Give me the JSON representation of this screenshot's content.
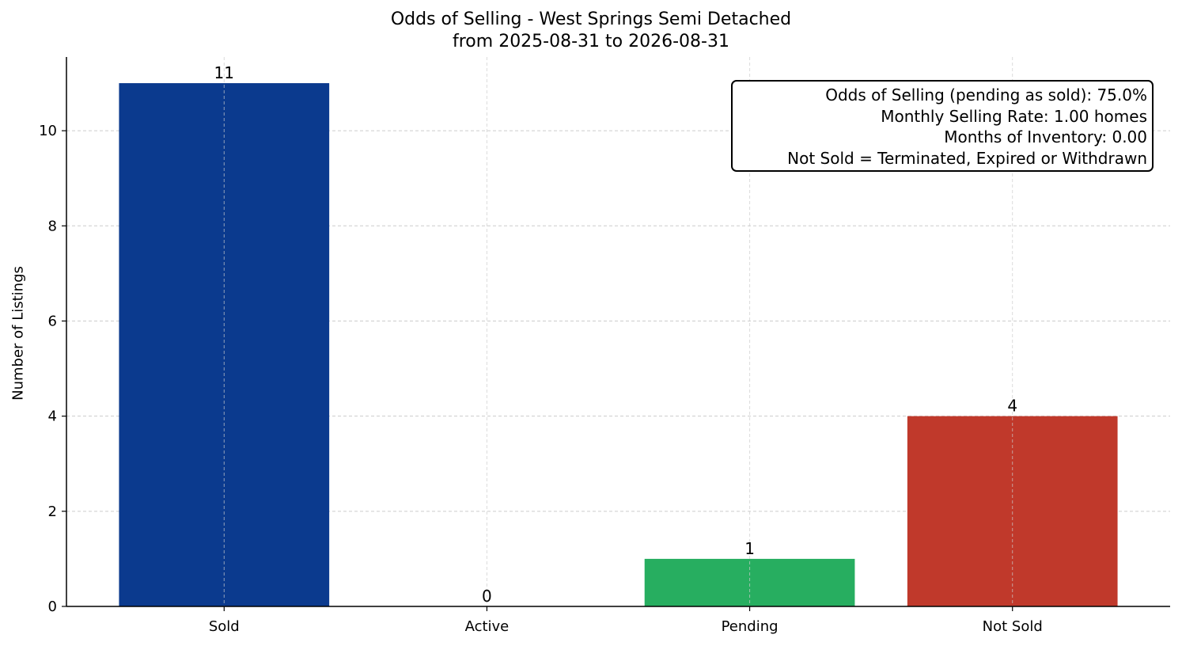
{
  "chart_data": {
    "type": "bar",
    "title": "Odds of Selling - West Springs Semi Detached",
    "subtitle": "from 2025-08-31 to 2026-08-31",
    "xlabel": "",
    "ylabel": "Number of Listings",
    "categories": [
      "Sold",
      "Active",
      "Pending",
      "Not Sold"
    ],
    "values": [
      11,
      0,
      1,
      4
    ],
    "data_labels": [
      "11",
      "0",
      "1",
      "4"
    ],
    "colors": [
      "#0b3a8e",
      "#2e8b57",
      "#27ae60",
      "#c0392b"
    ],
    "ylim": [
      0,
      11.55
    ],
    "yticks": [
      0,
      2,
      4,
      6,
      8,
      10
    ],
    "grid": true,
    "annotation_position": "top-right",
    "annotation_lines": [
      "Odds of Selling (pending as sold): 75.0%",
      "Monthly Selling Rate: 1.00 homes",
      "Months of Inventory: 0.00",
      "Not Sold = Terminated, Expired or Withdrawn"
    ]
  }
}
